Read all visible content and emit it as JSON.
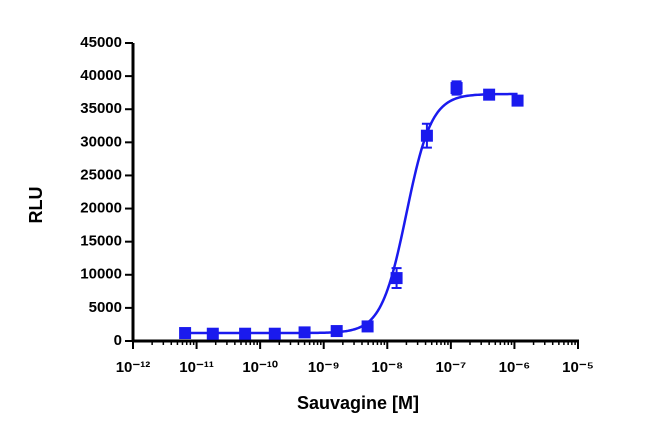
{
  "chart_data": {
    "type": "dose-response",
    "xlabel": "Sauvagine [M]",
    "ylabel": "RLU",
    "xscale": "log",
    "xlim": [
      1e-12,
      1e-05
    ],
    "xticks": [
      {
        "value": 1e-12,
        "label": "10⁻¹²"
      },
      {
        "value": 1e-11,
        "label": "10⁻¹¹"
      },
      {
        "value": 1e-10,
        "label": "10⁻¹⁰"
      },
      {
        "value": 1e-09,
        "label": "10⁻⁹"
      },
      {
        "value": 1e-08,
        "label": "10⁻⁸"
      },
      {
        "value": 1e-07,
        "label": "10⁻⁷"
      },
      {
        "value": 1e-06,
        "label": "10⁻⁶"
      },
      {
        "value": 1e-05,
        "label": "10⁻⁵"
      }
    ],
    "ylim": [
      0,
      45000
    ],
    "yticks": [
      0,
      5000,
      10000,
      15000,
      20000,
      25000,
      30000,
      35000,
      40000,
      45000
    ],
    "grid": false,
    "color": "#1a1aee",
    "x": [
      6.6e-12,
      1.8e-11,
      5.8e-11,
      1.7e-10,
      5e-10,
      1.6e-09,
      4.9e-09,
      1.4e-08,
      4.2e-08,
      1.23e-07,
      4e-07,
      1.12e-06
    ],
    "values": [
      1200,
      1100,
      1100,
      1100,
      1300,
      1500,
      2200,
      9500,
      31000,
      38200,
      37200,
      36300
    ],
    "errors": [
      null,
      null,
      null,
      null,
      null,
      null,
      null,
      1500,
      1800,
      1000,
      null,
      null
    ],
    "fit": {
      "bottom": 1200,
      "top": 37300,
      "ec50": 2e-08,
      "hill": 2.2
    }
  }
}
